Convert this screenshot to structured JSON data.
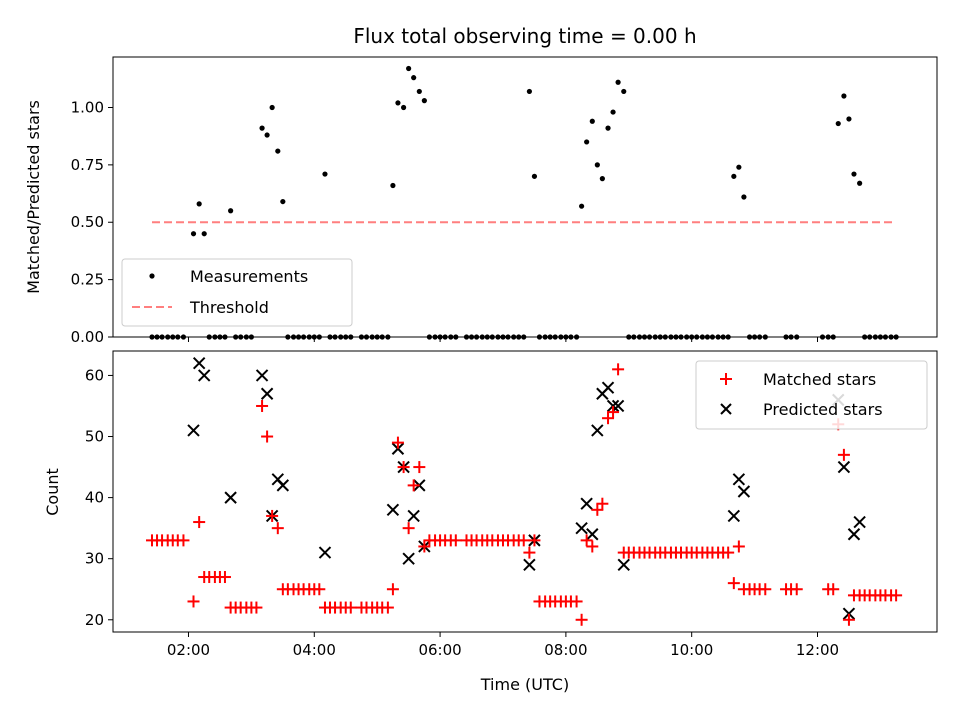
{
  "chart_data": [
    {
      "type": "scatter",
      "panel": "top",
      "title": "Flux total observing time = 0.00 h",
      "xlabel": "",
      "ylabel": "Matched/Predicted stars",
      "xlim": [
        0.8,
        13.9
      ],
      "ylim": [
        0.0,
        1.22
      ],
      "x_ticks": [
        "02:00",
        "04:00",
        "06:00",
        "08:00",
        "10:00",
        "12:00"
      ],
      "y_ticks": [
        "0.00",
        "0.25",
        "0.50",
        "0.75",
        "1.00"
      ],
      "y_tick_values": [
        0.0,
        0.25,
        0.5,
        0.75,
        1.0
      ],
      "legend_position": "lower-left",
      "legend": [
        "Measurements",
        "Threshold"
      ],
      "threshold": {
        "name": "Threshold",
        "x": [
          1.42,
          13.22
        ],
        "y": 0.5,
        "color": "#ff7f7f"
      },
      "series": [
        {
          "name": "Measurements",
          "color": "#000000",
          "points": [
            [
              2.08,
              0.45
            ],
            [
              2.17,
              0.58
            ],
            [
              2.25,
              0.45
            ],
            [
              2.67,
              0.55
            ],
            [
              3.17,
              0.91
            ],
            [
              3.25,
              0.88
            ],
            [
              3.33,
              1.0
            ],
            [
              3.42,
              0.81
            ],
            [
              3.5,
              0.59
            ],
            [
              4.17,
              0.71
            ],
            [
              5.25,
              0.66
            ],
            [
              5.33,
              1.02
            ],
            [
              5.42,
              1.0
            ],
            [
              5.5,
              1.17
            ],
            [
              5.58,
              1.13
            ],
            [
              5.67,
              1.07
            ],
            [
              5.75,
              1.03
            ],
            [
              7.42,
              1.07
            ],
            [
              7.5,
              0.7
            ],
            [
              8.25,
              0.57
            ],
            [
              8.33,
              0.85
            ],
            [
              8.42,
              0.94
            ],
            [
              8.5,
              0.75
            ],
            [
              8.58,
              0.69
            ],
            [
              8.67,
              0.91
            ],
            [
              8.75,
              0.98
            ],
            [
              8.83,
              1.11
            ],
            [
              8.92,
              1.07
            ],
            [
              10.67,
              0.7
            ],
            [
              10.75,
              0.74
            ],
            [
              10.83,
              0.61
            ],
            [
              12.33,
              0.93
            ],
            [
              12.42,
              1.05
            ],
            [
              12.5,
              0.95
            ],
            [
              12.58,
              0.71
            ],
            [
              12.67,
              0.67
            ]
          ],
          "zero_x": [
            1.42,
            1.5,
            1.58,
            1.67,
            1.75,
            1.83,
            1.92,
            2.33,
            2.42,
            2.5,
            2.58,
            2.75,
            2.83,
            2.92,
            3.0,
            3.58,
            3.67,
            3.75,
            3.83,
            3.92,
            4.0,
            4.08,
            4.25,
            4.33,
            4.42,
            4.5,
            4.58,
            4.75,
            4.83,
            4.92,
            5.0,
            5.08,
            5.17,
            5.83,
            5.92,
            6.0,
            6.08,
            6.17,
            6.25,
            6.42,
            6.5,
            6.58,
            6.67,
            6.75,
            6.83,
            6.92,
            7.0,
            7.08,
            7.17,
            7.25,
            7.33,
            7.58,
            7.67,
            7.75,
            7.83,
            7.92,
            8.0,
            8.08,
            8.17,
            9.0,
            9.08,
            9.17,
            9.25,
            9.33,
            9.42,
            9.5,
            9.58,
            9.67,
            9.75,
            9.83,
            9.92,
            10.0,
            10.08,
            10.17,
            10.25,
            10.33,
            10.42,
            10.5,
            10.58,
            10.92,
            11.0,
            11.08,
            11.17,
            11.5,
            11.58,
            11.67,
            12.08,
            12.17,
            12.25,
            12.75,
            12.83,
            12.92,
            13.0,
            13.08,
            13.17,
            13.25
          ]
        }
      ]
    },
    {
      "type": "scatter",
      "panel": "bottom",
      "title": "",
      "xlabel": "Time (UTC)",
      "ylabel": "Count",
      "xlim": [
        0.8,
        13.9
      ],
      "ylim": [
        18.0,
        64.0
      ],
      "x_ticks": [
        "02:00",
        "04:00",
        "06:00",
        "08:00",
        "10:00",
        "12:00"
      ],
      "x_tick_values": [
        2,
        4,
        6,
        8,
        10,
        12
      ],
      "y_ticks": [
        "20",
        "30",
        "40",
        "50",
        "60"
      ],
      "y_tick_values": [
        20,
        30,
        40,
        50,
        60
      ],
      "legend_position": "upper-right",
      "legend": [
        "Matched stars",
        "Predicted stars"
      ],
      "series": [
        {
          "name": "Matched stars",
          "marker": "+",
          "color": "#ff0000",
          "points": [
            [
              1.42,
              33
            ],
            [
              1.5,
              33
            ],
            [
              1.58,
              33
            ],
            [
              1.67,
              33
            ],
            [
              1.75,
              33
            ],
            [
              1.83,
              33
            ],
            [
              1.92,
              33
            ],
            [
              2.08,
              23
            ],
            [
              2.17,
              36
            ],
            [
              2.25,
              27
            ],
            [
              2.33,
              27
            ],
            [
              2.42,
              27
            ],
            [
              2.5,
              27
            ],
            [
              2.58,
              27
            ],
            [
              2.67,
              22
            ],
            [
              2.75,
              22
            ],
            [
              2.83,
              22
            ],
            [
              2.92,
              22
            ],
            [
              3.0,
              22
            ],
            [
              3.08,
              22
            ],
            [
              3.17,
              55
            ],
            [
              3.25,
              50
            ],
            [
              3.33,
              37
            ],
            [
              3.42,
              35
            ],
            [
              3.5,
              25
            ],
            [
              3.58,
              25
            ],
            [
              3.67,
              25
            ],
            [
              3.75,
              25
            ],
            [
              3.83,
              25
            ],
            [
              3.92,
              25
            ],
            [
              4.0,
              25
            ],
            [
              4.08,
              25
            ],
            [
              4.17,
              22
            ],
            [
              4.25,
              22
            ],
            [
              4.33,
              22
            ],
            [
              4.42,
              22
            ],
            [
              4.5,
              22
            ],
            [
              4.58,
              22
            ],
            [
              4.75,
              22
            ],
            [
              4.83,
              22
            ],
            [
              4.92,
              22
            ],
            [
              5.0,
              22
            ],
            [
              5.08,
              22
            ],
            [
              5.17,
              22
            ],
            [
              5.25,
              25
            ],
            [
              5.33,
              49
            ],
            [
              5.42,
              45
            ],
            [
              5.5,
              35
            ],
            [
              5.58,
              42
            ],
            [
              5.67,
              45
            ],
            [
              5.75,
              32
            ],
            [
              5.83,
              33
            ],
            [
              5.92,
              33
            ],
            [
              6.0,
              33
            ],
            [
              6.08,
              33
            ],
            [
              6.17,
              33
            ],
            [
              6.25,
              33
            ],
            [
              6.42,
              33
            ],
            [
              6.5,
              33
            ],
            [
              6.58,
              33
            ],
            [
              6.67,
              33
            ],
            [
              6.75,
              33
            ],
            [
              6.83,
              33
            ],
            [
              6.92,
              33
            ],
            [
              7.0,
              33
            ],
            [
              7.08,
              33
            ],
            [
              7.17,
              33
            ],
            [
              7.25,
              33
            ],
            [
              7.33,
              33
            ],
            [
              7.42,
              31
            ],
            [
              7.5,
              33
            ],
            [
              7.58,
              23
            ],
            [
              7.67,
              23
            ],
            [
              7.75,
              23
            ],
            [
              7.83,
              23
            ],
            [
              7.92,
              23
            ],
            [
              8.0,
              23
            ],
            [
              8.08,
              23
            ],
            [
              8.17,
              23
            ],
            [
              8.25,
              20
            ],
            [
              8.33,
              33
            ],
            [
              8.42,
              32
            ],
            [
              8.5,
              38
            ],
            [
              8.58,
              39
            ],
            [
              8.67,
              53
            ],
            [
              8.75,
              54
            ],
            [
              8.83,
              61
            ],
            [
              8.92,
              31
            ],
            [
              9.0,
              31
            ],
            [
              9.08,
              31
            ],
            [
              9.17,
              31
            ],
            [
              9.25,
              31
            ],
            [
              9.33,
              31
            ],
            [
              9.42,
              31
            ],
            [
              9.5,
              31
            ],
            [
              9.58,
              31
            ],
            [
              9.67,
              31
            ],
            [
              9.75,
              31
            ],
            [
              9.83,
              31
            ],
            [
              9.92,
              31
            ],
            [
              10.0,
              31
            ],
            [
              10.08,
              31
            ],
            [
              10.17,
              31
            ],
            [
              10.25,
              31
            ],
            [
              10.33,
              31
            ],
            [
              10.42,
              31
            ],
            [
              10.5,
              31
            ],
            [
              10.58,
              31
            ],
            [
              10.67,
              26
            ],
            [
              10.75,
              32
            ],
            [
              10.83,
              25
            ],
            [
              10.92,
              25
            ],
            [
              11.0,
              25
            ],
            [
              11.08,
              25
            ],
            [
              11.17,
              25
            ],
            [
              11.5,
              25
            ],
            [
              11.58,
              25
            ],
            [
              11.67,
              25
            ],
            [
              12.17,
              25
            ],
            [
              12.25,
              25
            ],
            [
              12.33,
              52
            ],
            [
              12.42,
              47
            ],
            [
              12.5,
              20
            ],
            [
              12.58,
              24
            ],
            [
              12.67,
              24
            ],
            [
              12.75,
              24
            ],
            [
              12.83,
              24
            ],
            [
              12.92,
              24
            ],
            [
              13.0,
              24
            ],
            [
              13.08,
              24
            ],
            [
              13.17,
              24
            ],
            [
              13.25,
              24
            ]
          ]
        },
        {
          "name": "Predicted stars",
          "marker": "x",
          "color": "#000000",
          "points": [
            [
              2.08,
              51
            ],
            [
              2.17,
              62
            ],
            [
              2.25,
              60
            ],
            [
              2.67,
              40
            ],
            [
              3.17,
              60
            ],
            [
              3.25,
              57
            ],
            [
              3.33,
              37
            ],
            [
              3.42,
              43
            ],
            [
              3.5,
              42
            ],
            [
              4.17,
              31
            ],
            [
              5.25,
              38
            ],
            [
              5.33,
              48
            ],
            [
              5.42,
              45
            ],
            [
              5.5,
              30
            ],
            [
              5.58,
              37
            ],
            [
              5.67,
              42
            ],
            [
              5.75,
              32
            ],
            [
              7.42,
              29
            ],
            [
              7.5,
              33
            ],
            [
              8.25,
              35
            ],
            [
              8.33,
              39
            ],
            [
              8.42,
              34
            ],
            [
              8.5,
              51
            ],
            [
              8.58,
              57
            ],
            [
              8.67,
              58
            ],
            [
              8.75,
              55
            ],
            [
              8.83,
              55
            ],
            [
              8.92,
              29
            ],
            [
              10.67,
              37
            ],
            [
              10.75,
              43
            ],
            [
              10.83,
              41
            ],
            [
              12.33,
              56
            ],
            [
              12.42,
              45
            ],
            [
              12.5,
              21
            ],
            [
              12.58,
              34
            ],
            [
              12.67,
              36
            ]
          ]
        }
      ]
    }
  ]
}
